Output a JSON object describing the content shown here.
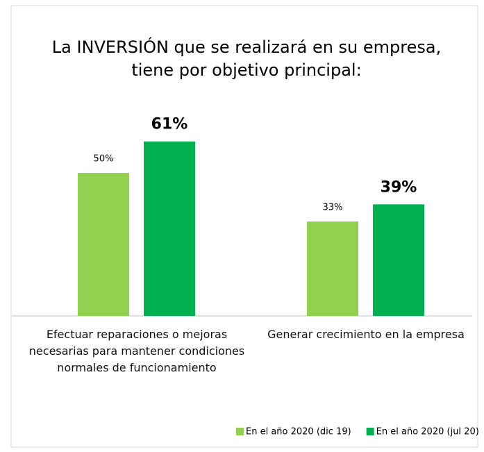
{
  "chart_data": {
    "type": "bar",
    "title": "La INVERSIÓN que se realizará en su empresa, tiene por objetivo principal:",
    "categories": [
      "Efectuar reparaciones o mejoras necesarias para mantener condiciones normales de funcionamiento",
      "Generar crecimiento en la empresa"
    ],
    "series": [
      {
        "name": "En el año 2020 (dic 19)",
        "color": "#92d050",
        "values": [
          50,
          33
        ],
        "value_labels": [
          "50%",
          "33%"
        ]
      },
      {
        "name": "En el año 2020 (jul 20)",
        "color": "#00b050",
        "values": [
          61,
          39
        ],
        "value_labels": [
          "61%",
          "39%"
        ]
      }
    ]
  }
}
